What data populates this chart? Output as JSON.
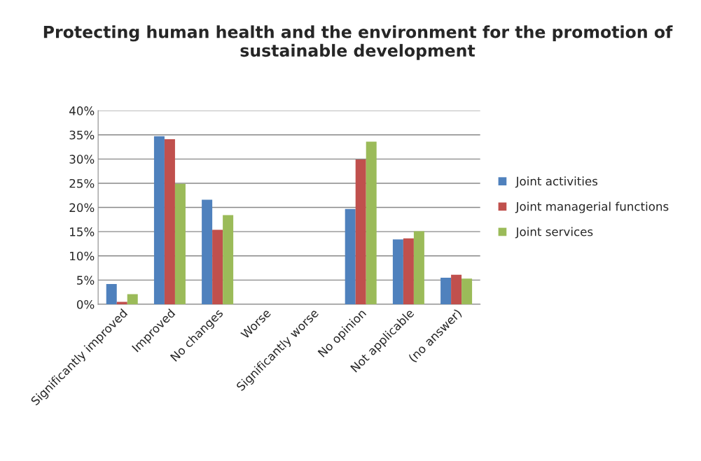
{
  "chart_data": {
    "type": "bar",
    "title": "Protecting human health and the environment for the promotion of sustainable development",
    "categories": [
      "Significantly improved",
      "Improved",
      "No changes",
      "Worse",
      "Significantly worse",
      "No opinion",
      "Not applicable",
      "(no answer)"
    ],
    "series": [
      {
        "name": "Joint activities",
        "color": "#4f81bd",
        "values": [
          4.2,
          34.7,
          21.6,
          0,
          0,
          19.7,
          13.4,
          5.5
        ]
      },
      {
        "name": "Joint managerial functions",
        "color": "#c0504d",
        "values": [
          0.5,
          34.1,
          15.4,
          0,
          0,
          29.9,
          13.6,
          6.1
        ]
      },
      {
        "name": "Joint services",
        "color": "#9bbb59",
        "values": [
          2.1,
          24.9,
          18.4,
          0,
          0,
          33.6,
          15.1,
          5.3
        ]
      }
    ],
    "ylim": [
      0,
      40
    ],
    "yticks": [
      {
        "value": 0,
        "label": "0%"
      },
      {
        "value": 5,
        "label": "5%"
      },
      {
        "value": 10,
        "label": "10%"
      },
      {
        "value": 15,
        "label": "15%"
      },
      {
        "value": 20,
        "label": "20%"
      },
      {
        "value": 25,
        "label": "25%"
      },
      {
        "value": 30,
        "label": "30%"
      },
      {
        "value": 35,
        "label": "35%"
      },
      {
        "value": 40,
        "label": "40%"
      }
    ],
    "grid": "y",
    "legend": "right"
  }
}
